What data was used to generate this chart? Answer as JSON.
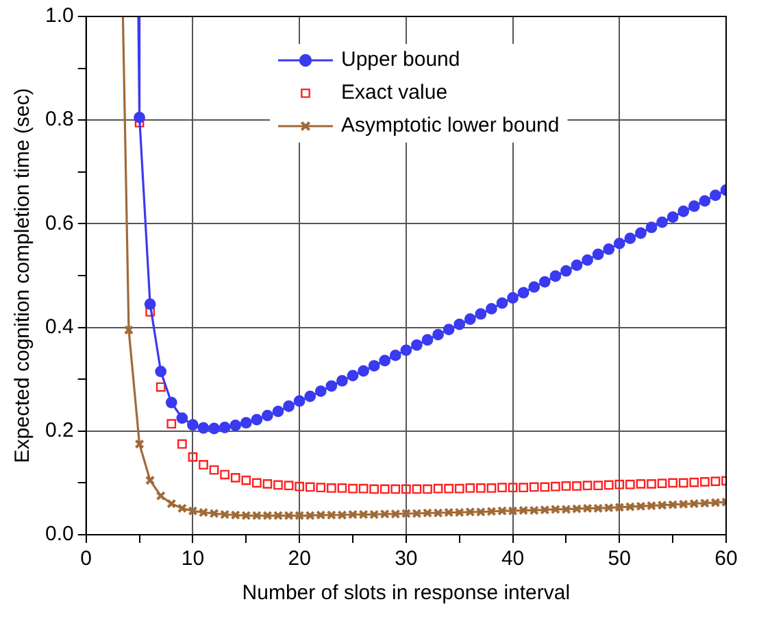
{
  "chart_data": {
    "type": "line",
    "xlabel": "Number of slots in response interval",
    "ylabel": "Expected cognition completion time (sec)",
    "xlim": [
      0,
      60
    ],
    "ylim": [
      0,
      1
    ],
    "xticks": [
      0,
      {
        "value": 5,
        "label": null
      },
      10,
      {
        "value": 15,
        "label": null
      },
      20,
      {
        "value": 25,
        "label": null
      },
      30,
      {
        "value": 35,
        "label": null
      },
      40,
      {
        "value": 45,
        "label": null
      },
      50,
      {
        "value": 55,
        "label": null
      },
      60
    ],
    "yticks": [
      {
        "value": 0,
        "label": "0.0"
      },
      {
        "value": 0.1,
        "label": null
      },
      {
        "value": 0.2,
        "label": "0.2"
      },
      {
        "value": 0.3,
        "label": null
      },
      {
        "value": 0.4,
        "label": "0.4"
      },
      {
        "value": 0.5,
        "label": null
      },
      {
        "value": 0.6,
        "label": "0.6"
      },
      {
        "value": 0.7,
        "label": null
      },
      {
        "value": 0.8,
        "label": "0.8"
      },
      {
        "value": 0.9,
        "label": null
      },
      {
        "value": 1,
        "label": "1.0"
      }
    ],
    "grid": true,
    "legend": "top right",
    "series": [
      {
        "name": "Upper bound",
        "type": "line",
        "marker": "circle",
        "color": "#3a3af0",
        "x": [
          4.9,
          5,
          6,
          7,
          8,
          9,
          10,
          11,
          12,
          13,
          14,
          15,
          16,
          17,
          18,
          19,
          20,
          21,
          22,
          23,
          24,
          25,
          26,
          27,
          28,
          29,
          30,
          31,
          32,
          33,
          34,
          35,
          36,
          37,
          38,
          39,
          40,
          41,
          42,
          43,
          44,
          45,
          46,
          47,
          48,
          49,
          50,
          51,
          52,
          53,
          54,
          55,
          56,
          57,
          58,
          59,
          60
        ],
        "values": [
          1.0,
          0.805,
          0.445,
          0.315,
          0.255,
          0.225,
          0.212,
          0.206,
          0.205,
          0.207,
          0.211,
          0.216,
          0.222,
          0.23,
          0.238,
          0.248,
          0.258,
          0.267,
          0.277,
          0.287,
          0.297,
          0.307,
          0.316,
          0.326,
          0.336,
          0.346,
          0.356,
          0.366,
          0.376,
          0.386,
          0.396,
          0.406,
          0.416,
          0.426,
          0.436,
          0.447,
          0.457,
          0.467,
          0.478,
          0.488,
          0.499,
          0.509,
          0.52,
          0.53,
          0.541,
          0.551,
          0.562,
          0.572,
          0.582,
          0.593,
          0.603,
          0.613,
          0.624,
          0.634,
          0.644,
          0.655,
          0.665
        ]
      },
      {
        "name": "Exact value",
        "type": "scatter",
        "marker": "square",
        "color": "#ff2020",
        "x": [
          5,
          6,
          7,
          8,
          9,
          10,
          11,
          12,
          13,
          14,
          15,
          16,
          17,
          18,
          19,
          20,
          21,
          22,
          23,
          24,
          25,
          26,
          27,
          28,
          29,
          30,
          31,
          32,
          33,
          34,
          35,
          36,
          37,
          38,
          39,
          40,
          41,
          42,
          43,
          44,
          45,
          46,
          47,
          48,
          49,
          50,
          51,
          52,
          53,
          54,
          55,
          56,
          57,
          58,
          59,
          60
        ],
        "values": [
          0.795,
          0.43,
          0.285,
          0.214,
          0.175,
          0.15,
          0.135,
          0.125,
          0.116,
          0.11,
          0.105,
          0.1,
          0.098,
          0.096,
          0.095,
          0.093,
          0.092,
          0.091,
          0.09,
          0.09,
          0.089,
          0.089,
          0.088,
          0.088,
          0.088,
          0.088,
          0.088,
          0.088,
          0.089,
          0.089,
          0.089,
          0.09,
          0.09,
          0.09,
          0.091,
          0.091,
          0.091,
          0.092,
          0.092,
          0.093,
          0.094,
          0.094,
          0.095,
          0.095,
          0.096,
          0.097,
          0.097,
          0.098,
          0.098,
          0.099,
          0.1,
          0.1,
          0.101,
          0.102,
          0.103,
          0.104
        ]
      },
      {
        "name": "Asymptotic lower bound",
        "type": "line",
        "marker": "cross",
        "color": "#a06a38",
        "x": [
          3.45,
          4,
          5,
          6,
          7,
          8,
          9,
          10,
          11,
          12,
          13,
          14,
          15,
          16,
          17,
          18,
          19,
          20,
          21,
          22,
          23,
          24,
          25,
          26,
          27,
          28,
          29,
          30,
          31,
          32,
          33,
          34,
          35,
          36,
          37,
          38,
          39,
          40,
          41,
          42,
          43,
          44,
          45,
          46,
          47,
          48,
          49,
          50,
          51,
          52,
          53,
          54,
          55,
          56,
          57,
          58,
          59,
          60
        ],
        "values": [
          1.0,
          0.395,
          0.175,
          0.105,
          0.075,
          0.06,
          0.051,
          0.046,
          0.043,
          0.041,
          0.039,
          0.038,
          0.037,
          0.037,
          0.037,
          0.037,
          0.037,
          0.037,
          0.037,
          0.038,
          0.038,
          0.038,
          0.039,
          0.039,
          0.039,
          0.04,
          0.04,
          0.041,
          0.041,
          0.042,
          0.042,
          0.043,
          0.043,
          0.044,
          0.044,
          0.045,
          0.046,
          0.046,
          0.047,
          0.047,
          0.048,
          0.049,
          0.049,
          0.05,
          0.051,
          0.051,
          0.052,
          0.053,
          0.054,
          0.055,
          0.056,
          0.057,
          0.058,
          0.059,
          0.06,
          0.061,
          0.062,
          0.063
        ]
      }
    ]
  }
}
